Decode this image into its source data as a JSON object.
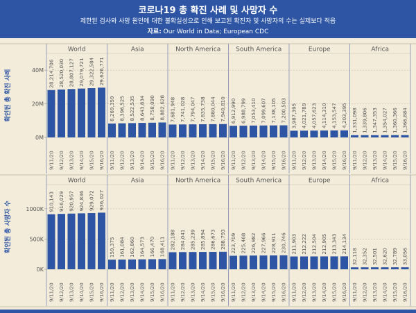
{
  "header": {
    "title": "코로나19 총 확진 사례 및 사망자 수",
    "subtitle": "제한된 검사와 사망 원인에 대한 불확실성으로 인해 보고된 확진자 및 사망자의 수는 실제보다 적음",
    "source_label": "자료:",
    "source_text": " Our World in Data; European CDC"
  },
  "colors": {
    "header_bg": "#2e55a4",
    "bar": "#2e55a4",
    "background": "#f3ecda"
  },
  "chart_data": [
    {
      "type": "bar",
      "ylabel": "확인된 총 확진 사례",
      "ylim": [
        0,
        50000000
      ],
      "y_ticks": [
        0,
        20000000,
        40000000
      ],
      "y_tick_labels": [
        "0M",
        "20M",
        "40M"
      ],
      "dates": [
        "9/11/20",
        "9/12/20",
        "9/13/20",
        "9/14/20",
        "9/15/20",
        "9/16/20"
      ],
      "panels": [
        {
          "region": "World",
          "values": [
            28214706,
            28520030,
            28807127,
            29079721,
            29322584,
            29626771
          ],
          "labels": [
            "28,214,706",
            "28,520,030",
            "28,807,127",
            "29,079,721",
            "29,322,584",
            "29,626,771"
          ]
        },
        {
          "region": "Asia",
          "values": [
            8269359,
            8396525,
            8522535,
            8643834,
            8758090,
            8882628
          ],
          "labels": [
            "8,269,359",
            "8,396,525",
            "8,522,535",
            "8,643,834",
            "8,758,090",
            "8,882,628"
          ]
        },
        {
          "region": "North America",
          "values": [
            7681948,
            7741028,
            7794047,
            7835738,
            7880044,
            7940810
          ],
          "labels": [
            "7,681,948",
            "7,741,028",
            "7,794,047",
            "7,835,738",
            "7,880,044",
            "7,940,810"
          ]
        },
        {
          "region": "South America",
          "values": [
            6912990,
            6988799,
            7053410,
            7099607,
            7138105,
            7200503
          ],
          "labels": [
            "6,912,990",
            "6,988,799",
            "7,053,410",
            "7,099,607",
            "7,138,105",
            "7,200,503"
          ]
        },
        {
          "region": "Europe",
          "values": [
            3987395,
            4021789,
            4057623,
            4114310,
            4153547,
            4203395
          ],
          "labels": [
            "3,987,395",
            "4,021,789",
            "4,057,623",
            "4,114,310",
            "4,153,547",
            "4,203,395"
          ]
        },
        {
          "region": "Africa",
          "values": [
            1331098,
            1339806,
            1347353,
            1354027,
            1360366,
            1366884
          ],
          "labels": [
            "1,331,098",
            "1,339,806",
            "1,347,353",
            "1,354,027",
            "1,360,366",
            "1,366,884"
          ]
        }
      ]
    },
    {
      "type": "bar",
      "ylabel": "확인된 총 사망자 수",
      "ylim": [
        0,
        1400000
      ],
      "y_ticks": [
        0,
        500000,
        1000000
      ],
      "y_tick_labels": [
        "0K",
        "500K",
        "1000K"
      ],
      "dates": [
        "9/11/20",
        "9/12/20",
        "9/13/20",
        "9/14/20",
        "9/15/20",
        "9/16/20"
      ],
      "panels": [
        {
          "region": "World",
          "values": [
            910143,
            916029,
            920957,
            924836,
            929072,
            936027
          ],
          "labels": [
            "910,143",
            "916,029",
            "920,957",
            "924,836",
            "929,072",
            "936,027"
          ]
        },
        {
          "region": "Asia",
          "values": [
            159375,
            161084,
            162860,
            164573,
            166470,
            168411
          ],
          "labels": [
            "159,375",
            "161,084",
            "162,860",
            "164,573",
            "166,470",
            "168,411"
          ]
        },
        {
          "region": "North America",
          "values": [
            282188,
            284041,
            285239,
            285894,
            286673,
            288793
          ],
          "labels": [
            "282,188",
            "284,041",
            "285,239",
            "285,894",
            "286,673",
            "288,793"
          ]
        },
        {
          "region": "South America",
          "values": [
            223709,
            225468,
            226982,
            227966,
            228911,
            230746
          ],
          "labels": [
            "223,709",
            "225,468",
            "226,982",
            "227,966",
            "228,911",
            "230,746"
          ]
        },
        {
          "region": "Europe",
          "values": [
            211903,
            212222,
            212504,
            212905,
            213343,
            214134
          ],
          "labels": [
            "211,903",
            "212,222",
            "212,504",
            "212,905",
            "213,343",
            "214,134"
          ]
        },
        {
          "region": "Africa",
          "values": [
            32118,
            32352,
            32501,
            32620,
            32789,
            33056
          ],
          "labels": [
            "32,118",
            "32,352",
            "32,501",
            "32,620",
            "32,789",
            "33,056"
          ]
        }
      ]
    }
  ]
}
